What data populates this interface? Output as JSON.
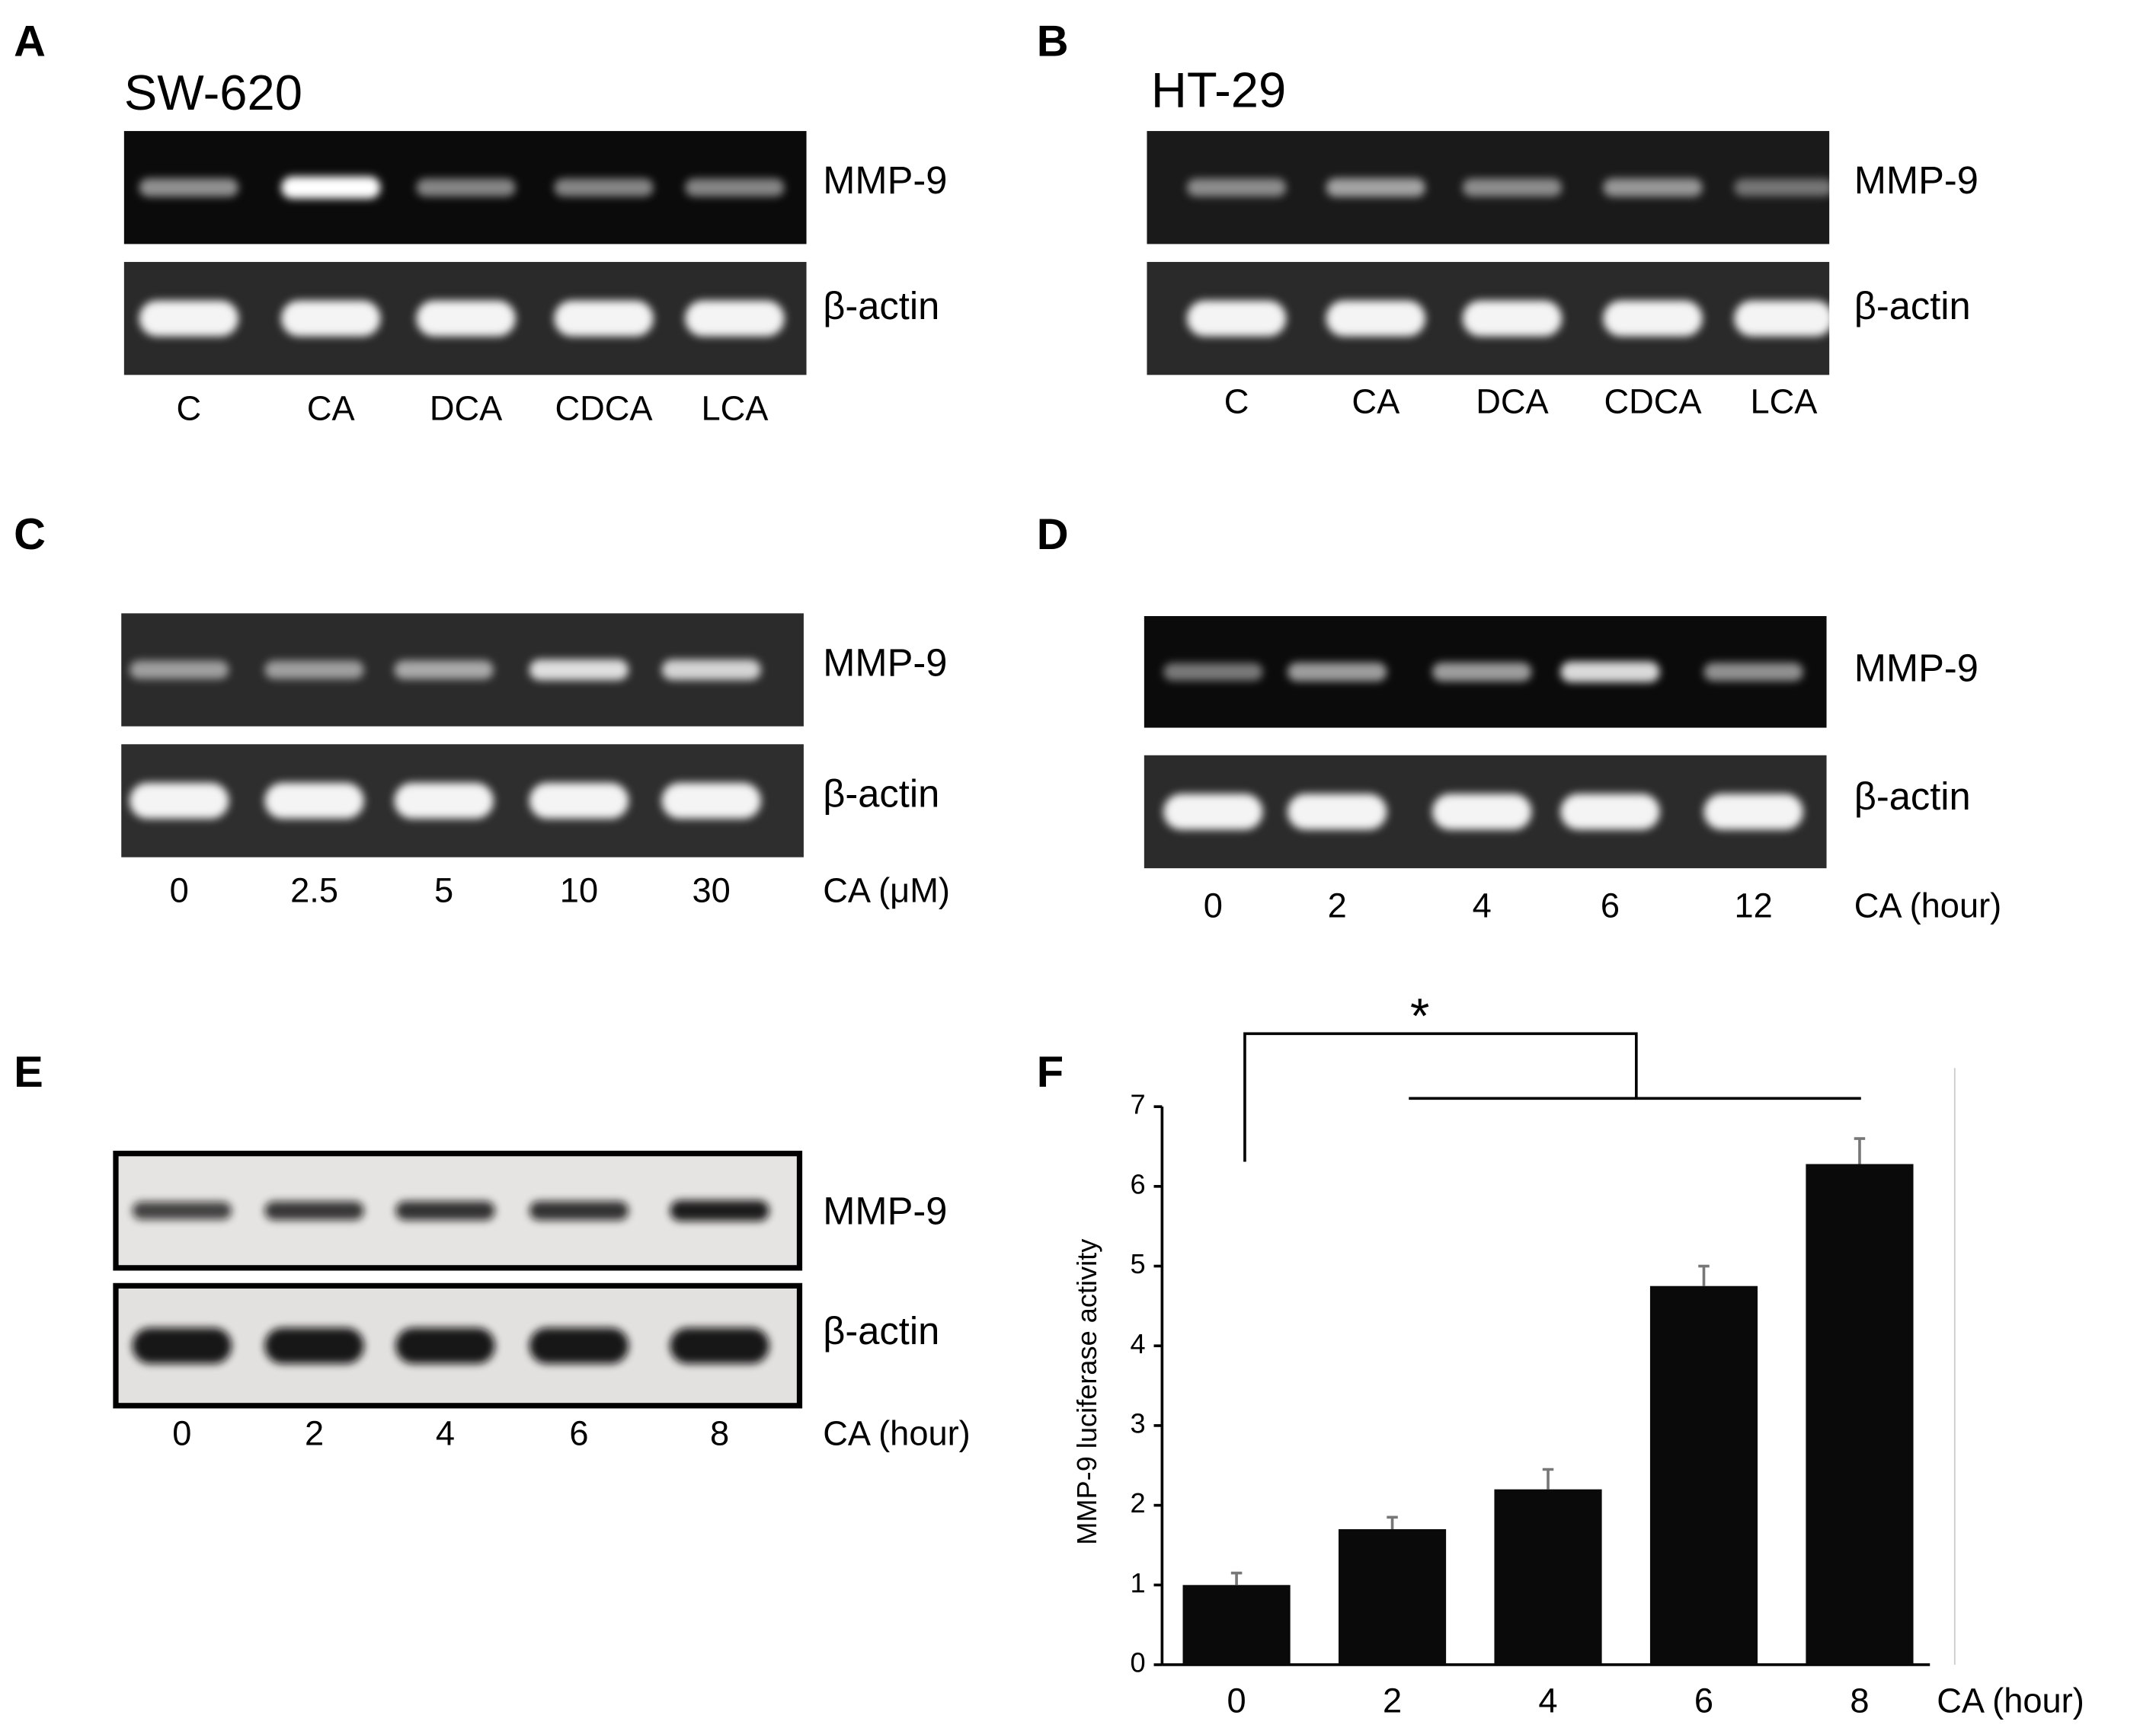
{
  "panels": [
    {
      "label": "A",
      "title": "SW-620",
      "rows": [
        "MMP-9",
        "β-actin"
      ],
      "lanes": [
        "C",
        "CA",
        "DCA",
        "CDCA",
        "LCA"
      ]
    },
    {
      "label": "B",
      "title": "HT-29",
      "rows": [
        "MMP-9",
        "β-actin"
      ],
      "lanes": [
        "C",
        "CA",
        "DCA",
        "CDCA",
        "LCA"
      ]
    },
    {
      "label": "C",
      "rows": [
        "MMP-9",
        "β-actin"
      ],
      "lanes": [
        "0",
        "2.5",
        "5",
        "10",
        "30"
      ],
      "unit": "CA (μM)"
    },
    {
      "label": "D",
      "rows": [
        "MMP-9",
        "β-actin"
      ],
      "lanes": [
        "0",
        "2",
        "4",
        "6",
        "12"
      ],
      "unit": "CA (hour)"
    },
    {
      "label": "E",
      "rows": [
        "MMP-9",
        "β-actin"
      ],
      "lanes": [
        "0",
        "2",
        "4",
        "6",
        "8"
      ],
      "unit": "CA (hour)"
    }
  ],
  "chart_data": {
    "type": "bar",
    "label": "F",
    "ylabel": "MMP-9 luciferase activity",
    "xlabel": "CA (hour)",
    "annotation": "*",
    "categories": [
      "0",
      "2",
      "4",
      "6",
      "8"
    ],
    "values": [
      1.0,
      1.7,
      2.2,
      4.75,
      6.28
    ],
    "errors": [
      0.15,
      0.15,
      0.25,
      0.25,
      0.32
    ],
    "color": "#0a0a0a",
    "ylim": [
      0,
      7
    ],
    "yticks": [
      0,
      1,
      2,
      3,
      4,
      5,
      6,
      7
    ]
  }
}
